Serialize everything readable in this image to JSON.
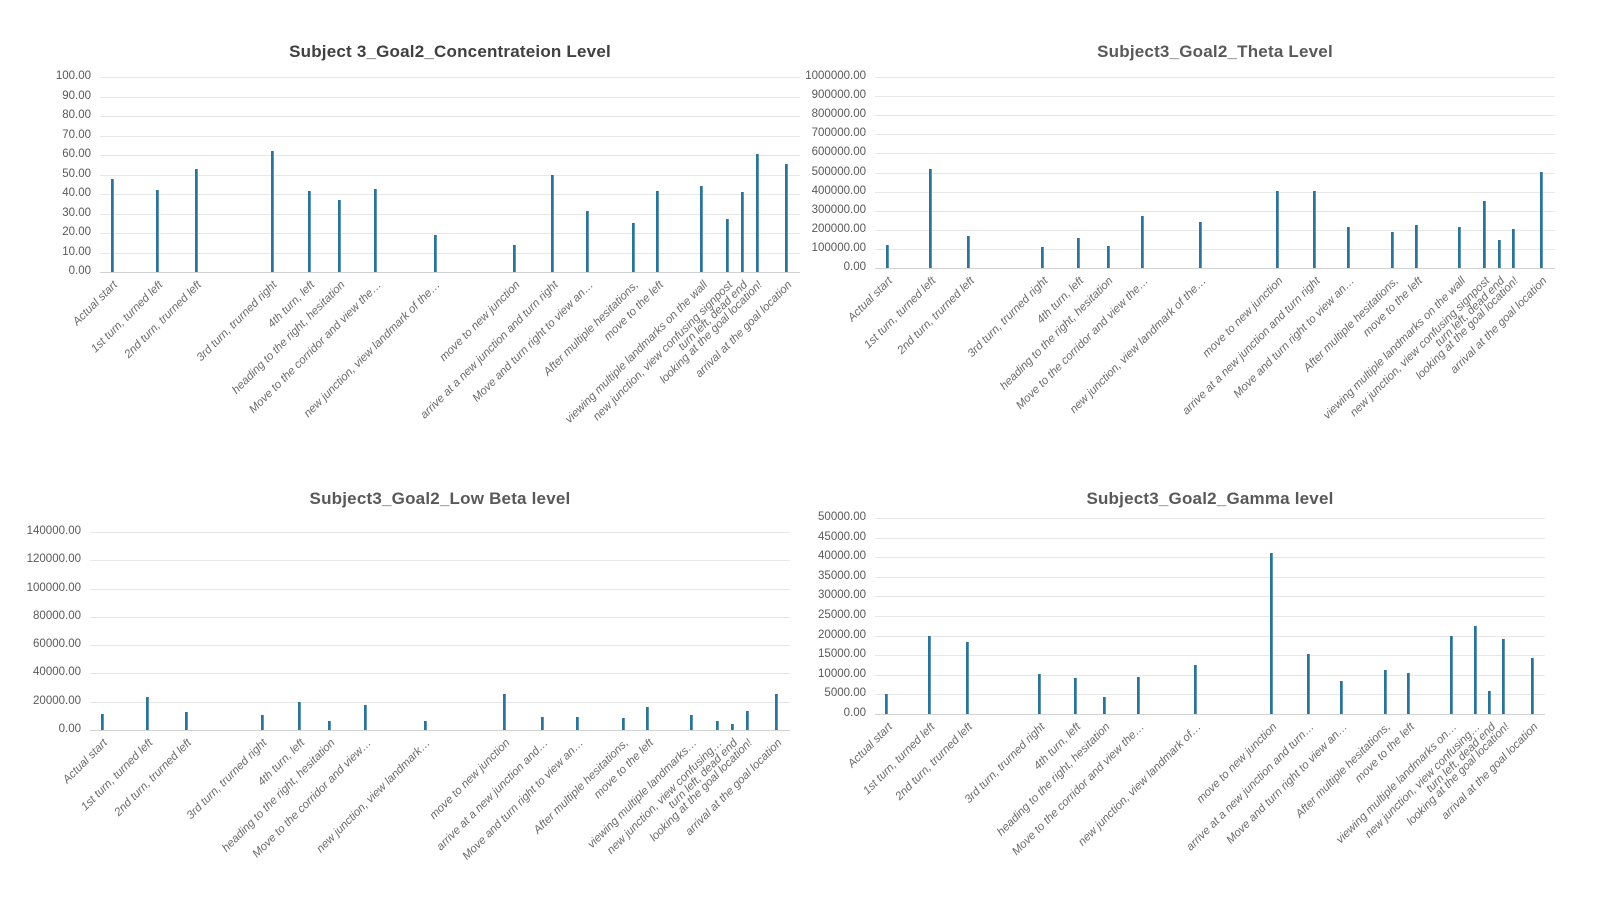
{
  "page": {
    "background": "#FFFFFF"
  },
  "layout_hints": {
    "grid": "2x2",
    "legend": "none",
    "gridlines": "horizontal",
    "x_positions_pct": [
      1.7,
      8.1,
      13.7,
      24.5,
      29.8,
      34.2,
      39.3,
      47.8,
      59.1,
      64.6,
      69.6,
      76.1,
      79.6,
      85.9,
      89.5,
      91.7,
      93.8,
      98.0
    ],
    "colors": {
      "bar": "#2B7397",
      "gridline": "#E7E7E7",
      "axis_line": "#D2D2D2",
      "tick_text": "#595959",
      "title_text": "#595959",
      "title_bold_text": "#404040",
      "background": "#FFFFFF"
    }
  },
  "chart_data": [
    {
      "type": "bar",
      "id": "concentration",
      "title": "Subject 3_Goal2_Concentrateion Level",
      "title_bold": true,
      "xlabel": "",
      "ylabel": "",
      "ylim": [
        0,
        100
      ],
      "y_step": 10,
      "y_ticks": [
        "100.00",
        "90.00",
        "80.00",
        "70.00",
        "60.00",
        "50.00",
        "40.00",
        "30.00",
        "20.00",
        "10.00",
        "0.00"
      ],
      "categories": [
        "Actual start",
        "1st turn, turned left",
        "2nd turn, trurned left",
        "3rd turn, trurned right",
        "4th turn, left",
        "heading to the right, hesitation",
        "Move to the corridor and view the…",
        "new junction, view landmark of the…",
        "move to new junction",
        "arrive at a new junction and turn right",
        "Move and turn right to view an…",
        "After multiple hesitations,",
        "move to the left",
        "viewing multiple landmarks on the wall",
        "new junction, view confusing signpost",
        "turn left, dead end",
        "looking at the goal location!",
        "arrival at the goal location"
      ],
      "values": [
        47.5,
        42.0,
        52.8,
        62.3,
        41.4,
        37.0,
        42.6,
        19.0,
        13.8,
        49.8,
        31.5,
        25.2,
        41.5,
        44.0,
        27.0,
        41.2,
        60.5,
        55.3
      ]
    },
    {
      "type": "bar",
      "id": "theta",
      "title": "Subject3_Goal2_Theta Level",
      "title_bold": false,
      "xlabel": "",
      "ylabel": "",
      "ylim": [
        0,
        1000000
      ],
      "y_step": 100000,
      "y_ticks": [
        "1000000.00",
        "900000.00",
        "800000.00",
        "700000.00",
        "600000.00",
        "500000.00",
        "400000.00",
        "300000.00",
        "200000.00",
        "100000.00",
        "0.00"
      ],
      "categories": [
        "Actual start",
        "1st turn, turned left",
        "2nd turn, trurned left",
        "3rd turn, trurned right",
        "4th turn, left",
        "heading to the right, hesitation",
        "Move to the corridor and view the…",
        "new junction, view landmark of the…",
        "move to new junction",
        "arrive at a new junction and turn right",
        "Move and turn right to view an…",
        "After multiple hesitations,",
        "move to the left",
        "viewing multiple landmarks on the wall",
        "new junction, view confusing signpost",
        "turn left, dead end",
        "looking at the goal location!",
        "arrival at the goal location"
      ],
      "values": [
        123000,
        520000,
        168000,
        108000,
        157000,
        117000,
        271000,
        243000,
        401000,
        403000,
        215000,
        187000,
        224000,
        214000,
        352000,
        148000,
        203000,
        500000
      ]
    },
    {
      "type": "bar",
      "id": "low_beta",
      "title": "Subject3_Goal2_Low Beta level",
      "title_bold": false,
      "xlabel": "",
      "ylabel": "",
      "ylim": [
        0,
        140000
      ],
      "y_step": 20000,
      "y_ticks": [
        "140000.00",
        "120000.00",
        "100000.00",
        "80000.00",
        "60000.00",
        "40000.00",
        "20000.00",
        "0.00"
      ],
      "categories": [
        "Actual start",
        "1st turn, turned left",
        "2nd turn, trurned left",
        "3rd turn, trurned right",
        "4th turn, left",
        "heading to the right, hesitation",
        "Move to the corridor and view…",
        "new junction, view landmark…",
        "move to new junction",
        "arrive at a new junction and…",
        "Move and turn right to view an…",
        "After multiple hesitations,",
        "move to the left",
        "viewing multiple landmarks…",
        "new junction, view confusing…",
        "turn left, dead end",
        "looking at the goal location!",
        "arrival at the goal location"
      ],
      "values": [
        11300,
        23600,
        12900,
        10400,
        19800,
        6400,
        17400,
        6300,
        25400,
        9200,
        9000,
        8300,
        16000,
        10600,
        6500,
        4300,
        13600,
        25400
      ]
    },
    {
      "type": "bar",
      "id": "gamma",
      "title": "Subject3_Goal2_Gamma level",
      "title_bold": false,
      "xlabel": "",
      "ylabel": "",
      "ylim": [
        0,
        50000
      ],
      "y_step": 5000,
      "y_ticks": [
        "50000.00",
        "45000.00",
        "40000.00",
        "35000.00",
        "30000.00",
        "25000.00",
        "20000.00",
        "15000.00",
        "10000.00",
        "5000.00",
        "0.00"
      ],
      "categories": [
        "Actual start",
        "1st turn, turned left",
        "2nd turn, trurned left",
        "3rd turn, trurned right",
        "4th turn, left",
        "heading to the right, hesitation",
        "Move to the corridor and view the…",
        "new junction, view landmark of…",
        "move to new junction",
        "arrive at a new junction and turn…",
        "Move and turn right to view an…",
        "After multiple hesitations,",
        "move to the left",
        "viewing multiple landmarks on…",
        "new junction, view confusing…",
        "turn left, dead end",
        "looking at the goal location!",
        "arrival at the goal location"
      ],
      "values": [
        5000,
        20000,
        18300,
        10300,
        9100,
        4400,
        9500,
        12600,
        41000,
        15300,
        8300,
        11200,
        10400,
        20000,
        22400,
        5900,
        19100,
        14400
      ]
    }
  ]
}
